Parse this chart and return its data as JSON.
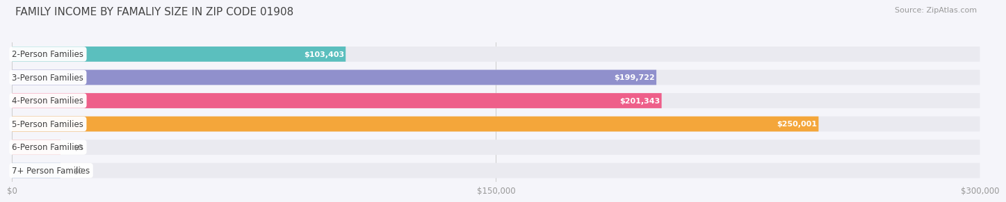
{
  "title": "FAMILY INCOME BY FAMALIY SIZE IN ZIP CODE 01908",
  "source": "Source: ZipAtlas.com",
  "categories": [
    "2-Person Families",
    "3-Person Families",
    "4-Person Families",
    "5-Person Families",
    "6-Person Families",
    "7+ Person Families"
  ],
  "values": [
    103403,
    199722,
    201343,
    250001,
    0,
    0
  ],
  "value_labels": [
    "$103,403",
    "$199,722",
    "$201,343",
    "$250,001",
    "$0",
    "$0"
  ],
  "bar_colors": [
    "#5BBFBE",
    "#9090CC",
    "#EE5F8A",
    "#F4A63A",
    "#F0A0A8",
    "#A0B8D8"
  ],
  "bar_bg_color": "#EAEAF0",
  "bar_bg_color_alt": "#E0E0E8",
  "xlim_max": 300000,
  "xtick_labels": [
    "$0",
    "$150,000",
    "$300,000"
  ],
  "title_fontsize": 11,
  "source_fontsize": 8,
  "label_fontsize": 8.5,
  "value_fontsize": 8,
  "background_color": "#F5F5FA",
  "stub_value": 15000
}
